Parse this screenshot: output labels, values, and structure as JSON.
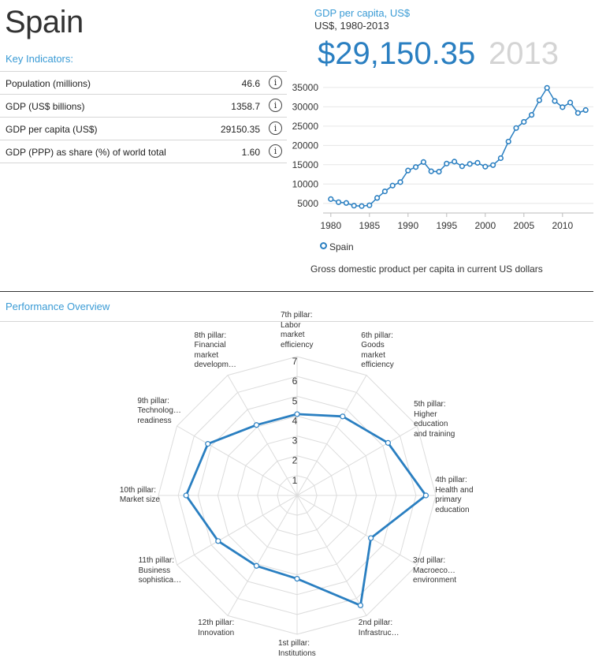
{
  "header": {
    "country": "Spain"
  },
  "key_indicators": {
    "label": "Key Indicators:",
    "rows": [
      {
        "label": "Population (millions)",
        "value": "46.6",
        "info_icon": "info-icon"
      },
      {
        "label": "GDP (US$ billions)",
        "value": "1358.7",
        "info_icon": "info-icon"
      },
      {
        "label": "GDP per capita (US$)",
        "value": "29150.35",
        "info_icon": "info-icon"
      },
      {
        "label": "GDP (PPP) as share (%) of world total",
        "value": "1.60",
        "info_icon": "info-icon"
      }
    ],
    "info_glyph": "i"
  },
  "gdp": {
    "title": "GDP per capita, US$",
    "subtitle": "US$, 1980-2013",
    "big_value": "$29,150.35",
    "big_year": "2013",
    "caption": "Gross domestic product per capita in current US dollars"
  },
  "performance": {
    "title": "Performance Overview"
  },
  "colors": {
    "accent": "#2a7fc1",
    "title_blue": "#3a9bd5",
    "grid": "#dddddd"
  },
  "chart_data": [
    {
      "type": "line",
      "title": "GDP per capita, US$",
      "xlabel": "",
      "ylabel": "",
      "x": [
        1980,
        1981,
        1982,
        1983,
        1984,
        1985,
        1986,
        1987,
        1988,
        1989,
        1990,
        1991,
        1992,
        1993,
        1994,
        1995,
        1996,
        1997,
        1998,
        1999,
        2000,
        2001,
        2002,
        2003,
        2004,
        2005,
        2006,
        2007,
        2008,
        2009,
        2010,
        2011,
        2012,
        2013
      ],
      "series": [
        {
          "name": "Spain",
          "values": [
            6100,
            5300,
            5100,
            4400,
            4300,
            4500,
            6400,
            8100,
            9600,
            10500,
            13500,
            14400,
            15700,
            13300,
            13200,
            15300,
            15800,
            14600,
            15200,
            15500,
            14500,
            14900,
            16700,
            21000,
            24500,
            26100,
            27900,
            31700,
            34900,
            31500,
            29900,
            31100,
            28400,
            29150
          ]
        }
      ],
      "xticks": [
        1980,
        1985,
        1990,
        1995,
        2000,
        2005,
        2010
      ],
      "yticks": [
        5000,
        10000,
        15000,
        20000,
        25000,
        30000,
        35000
      ],
      "xlim": [
        1979,
        2014
      ],
      "ylim": [
        2500,
        36000
      ],
      "legend": {
        "position": "bottom-left",
        "entries": [
          "Spain"
        ]
      }
    },
    {
      "type": "radar",
      "title": "Performance Overview",
      "axes": [
        [
          "1st pillar:",
          "Institutions"
        ],
        [
          "2nd pillar:",
          "Infrastruc…"
        ],
        [
          "3rd pillar:",
          "Macroeco…",
          "environment"
        ],
        [
          "4th pillar:",
          "Health and",
          "primary",
          "education"
        ],
        [
          "5th pillar:",
          "Higher",
          "education",
          "and training"
        ],
        [
          "6th pillar:",
          "Goods",
          "market",
          "efficiency"
        ],
        [
          "7th pillar:",
          "Labor",
          "market",
          "efficiency"
        ],
        [
          "8th pillar:",
          "Financial",
          "market",
          "developm…"
        ],
        [
          "9th pillar:",
          "Technolog…",
          "readiness"
        ],
        [
          "10th pillar:",
          "Market size"
        ],
        [
          "11th pillar:",
          "Business",
          "sophistica…"
        ],
        [
          "12th pillar:",
          "Innovation"
        ]
      ],
      "scale_ticks": [
        "1",
        "2",
        "3",
        "4",
        "5",
        "6",
        "7"
      ],
      "scale_max": 7,
      "series": [
        {
          "name": "Spain",
          "values": [
            4.2,
            6.4,
            4.3,
            6.5,
            5.3,
            4.6,
            4.1,
            4.1,
            5.2,
            5.6,
            4.6,
            4.1
          ]
        }
      ]
    }
  ]
}
